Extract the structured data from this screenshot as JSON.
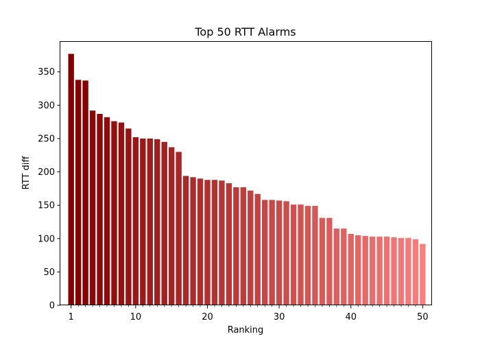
{
  "chart_data": {
    "type": "bar",
    "title": "Top 50 RTT Alarms",
    "xlabel": "Ranking",
    "ylabel": "RTT diff",
    "x": [
      1,
      2,
      3,
      4,
      5,
      6,
      7,
      8,
      9,
      10,
      11,
      12,
      13,
      14,
      15,
      16,
      17,
      18,
      19,
      20,
      21,
      22,
      23,
      24,
      25,
      26,
      27,
      28,
      29,
      30,
      31,
      32,
      33,
      34,
      35,
      36,
      37,
      38,
      39,
      40,
      41,
      42,
      43,
      44,
      45,
      46,
      47,
      48,
      49,
      50
    ],
    "values": [
      377,
      338,
      337,
      292,
      287,
      282,
      276,
      274,
      265,
      252,
      250,
      250,
      249,
      245,
      237,
      230,
      194,
      192,
      190,
      188,
      188,
      187,
      183,
      177,
      177,
      172,
      167,
      158,
      158,
      157,
      156,
      151,
      151,
      149,
      149,
      131,
      131,
      115,
      115,
      107,
      105,
      104,
      103,
      103,
      103,
      102,
      101,
      101,
      99,
      92
    ],
    "xlim": [
      -0.5,
      51.3
    ],
    "ylim": [
      0,
      395
    ],
    "x_ticks": [
      1,
      10,
      20,
      30,
      40,
      50
    ],
    "x_tick_labels": [
      "1",
      "10",
      "20",
      "30",
      "40",
      "50"
    ],
    "y_ticks": [
      0,
      50,
      100,
      150,
      200,
      250,
      300,
      350
    ],
    "y_tick_labels": [
      "0",
      "50",
      "100",
      "150",
      "200",
      "250",
      "300",
      "350"
    ],
    "color_start": "#800000",
    "color_end": "#f88080",
    "grid": false,
    "legend": "none"
  }
}
